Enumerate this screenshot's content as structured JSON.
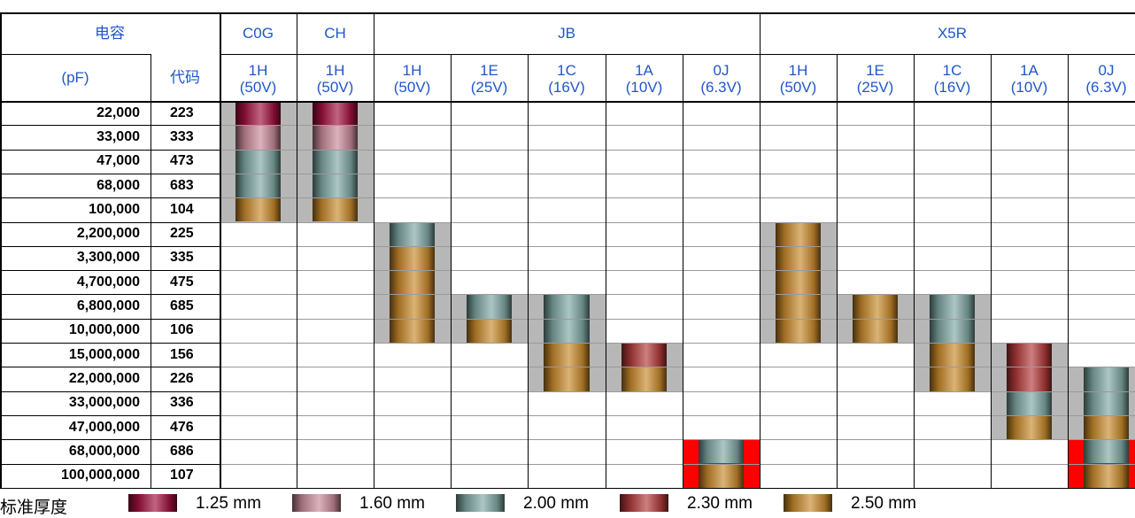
{
  "header": {
    "capacitance": "电容",
    "unit": "(pF)",
    "code": "代码",
    "groups": [
      "C0G",
      "CH",
      "JB",
      "X5R"
    ],
    "columns": [
      {
        "code": "1H",
        "voltage": "(50V)"
      },
      {
        "code": "1H",
        "voltage": "(50V)"
      },
      {
        "code": "1H",
        "voltage": "(50V)"
      },
      {
        "code": "1E",
        "voltage": "(25V)"
      },
      {
        "code": "1C",
        "voltage": "(16V)"
      },
      {
        "code": "1A",
        "voltage": "(10V)"
      },
      {
        "code": "0J",
        "voltage": "(6.3V)"
      },
      {
        "code": "1H",
        "voltage": "(50V)"
      },
      {
        "code": "1E",
        "voltage": "(25V)"
      },
      {
        "code": "1C",
        "voltage": "(16V)"
      },
      {
        "code": "1A",
        "voltage": "(10V)"
      },
      {
        "code": "0J",
        "voltage": "(6.3V)"
      }
    ]
  },
  "rows": [
    {
      "cap": "22,000",
      "code": "223"
    },
    {
      "cap": "33,000",
      "code": "333"
    },
    {
      "cap": "47,000",
      "code": "473"
    },
    {
      "cap": "68,000",
      "code": "683"
    },
    {
      "cap": "100,000",
      "code": "104"
    },
    {
      "cap": "2,200,000",
      "code": "225"
    },
    {
      "cap": "3,300,000",
      "code": "335"
    },
    {
      "cap": "4,700,000",
      "code": "475"
    },
    {
      "cap": "6,800,000",
      "code": "685"
    },
    {
      "cap": "10,000,000",
      "code": "106"
    },
    {
      "cap": "15,000,000",
      "code": "156"
    },
    {
      "cap": "22,000,000",
      "code": "226"
    },
    {
      "cap": "33,000,000",
      "code": "336"
    },
    {
      "cap": "47,000,000",
      "code": "476"
    },
    {
      "cap": "68,000,000",
      "code": "686"
    },
    {
      "cap": "100,000,000",
      "code": "107"
    }
  ],
  "thickness_colors": {
    "1.25": "#a0103e",
    "1.60": "#c8899a",
    "2.00": "#7fa8a4",
    "2.30": "#b23a3a",
    "2.50": "#c88a2c"
  },
  "products": [
    {
      "col": 0,
      "segments": [
        {
          "t": "1.25",
          "from": 0,
          "to": 0
        },
        {
          "t": "1.60",
          "from": 1,
          "to": 1
        },
        {
          "t": "2.00",
          "from": 2,
          "to": 3
        },
        {
          "t": "2.50",
          "from": 4,
          "to": 4
        }
      ],
      "band": "grey"
    },
    {
      "col": 1,
      "segments": [
        {
          "t": "1.25",
          "from": 0,
          "to": 0
        },
        {
          "t": "1.60",
          "from": 1,
          "to": 1
        },
        {
          "t": "2.00",
          "from": 2,
          "to": 3
        },
        {
          "t": "2.50",
          "from": 4,
          "to": 4
        }
      ],
      "band": "grey"
    },
    {
      "col": 2,
      "segments": [
        {
          "t": "2.00",
          "from": 5,
          "to": 5
        },
        {
          "t": "2.50",
          "from": 6,
          "to": 9
        }
      ],
      "band": "grey"
    },
    {
      "col": 3,
      "segments": [
        {
          "t": "2.00",
          "from": 8,
          "to": 8
        },
        {
          "t": "2.50",
          "from": 9,
          "to": 9
        }
      ],
      "band": "grey"
    },
    {
      "col": 4,
      "segments": [
        {
          "t": "2.00",
          "from": 8,
          "to": 9
        },
        {
          "t": "2.50",
          "from": 10,
          "to": 11
        }
      ],
      "band": "grey"
    },
    {
      "col": 5,
      "segments": [
        {
          "t": "2.30",
          "from": 10,
          "to": 10
        },
        {
          "t": "2.50",
          "from": 11,
          "to": 11
        }
      ],
      "band": "grey"
    },
    {
      "col": 6,
      "segments": [
        {
          "t": "2.00",
          "from": 14,
          "to": 14
        },
        {
          "t": "2.50",
          "from": 15,
          "to": 15
        }
      ],
      "band": "red"
    },
    {
      "col": 7,
      "segments": [
        {
          "t": "2.50",
          "from": 5,
          "to": 9
        }
      ],
      "band": "grey"
    },
    {
      "col": 8,
      "segments": [
        {
          "t": "2.50",
          "from": 8,
          "to": 9
        }
      ],
      "band": "grey"
    },
    {
      "col": 9,
      "segments": [
        {
          "t": "2.00",
          "from": 8,
          "to": 9
        },
        {
          "t": "2.50",
          "from": 10,
          "to": 11
        }
      ],
      "band": "grey"
    },
    {
      "col": 10,
      "segments": [
        {
          "t": "2.30",
          "from": 10,
          "to": 11
        },
        {
          "t": "2.00",
          "from": 12,
          "to": 12
        },
        {
          "t": "2.50",
          "from": 13,
          "to": 13
        }
      ],
      "band": "grey"
    },
    {
      "col": 11,
      "segments": [
        {
          "t": "2.00",
          "from": 11,
          "to": 12
        },
        {
          "t": "2.50",
          "from": 13,
          "to": 13
        },
        {
          "t": "2.00",
          "from": 14,
          "to": 14
        },
        {
          "t": "2.50",
          "from": 15,
          "to": 15
        }
      ],
      "band": "mixed"
    }
  ],
  "legend": {
    "title": "标准厚度",
    "items": [
      {
        "t": "1.25",
        "label": "1.25 mm"
      },
      {
        "t": "1.60",
        "label": "1.60 mm"
      },
      {
        "t": "2.00",
        "label": "2.00 mm"
      },
      {
        "t": "2.30",
        "label": "2.30 mm"
      },
      {
        "t": "2.50",
        "label": "2.50 mm"
      }
    ]
  }
}
